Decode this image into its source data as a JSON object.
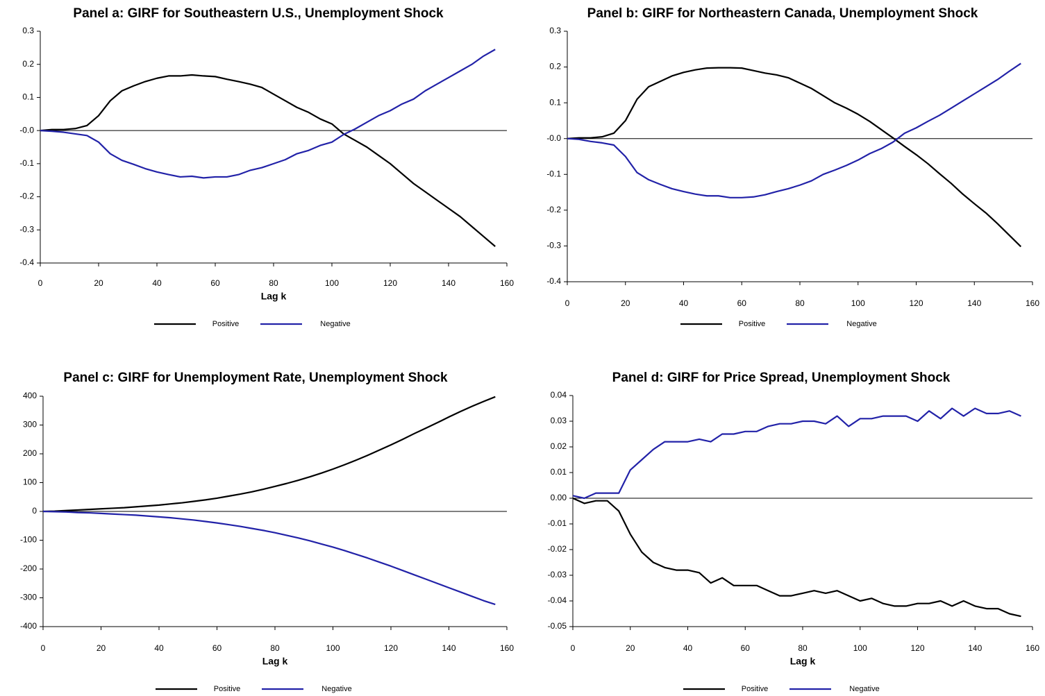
{
  "chart_data": [
    {
      "type": "line",
      "title": "Panel a: GIRF for Southeastern U.S., Unemployment Shock",
      "xlabel": "Lag k",
      "legend": "bottom",
      "x": [
        0,
        4,
        8,
        12,
        16,
        20,
        24,
        28,
        32,
        36,
        40,
        44,
        48,
        52,
        56,
        60,
        64,
        68,
        72,
        76,
        80,
        84,
        88,
        92,
        96,
        100,
        104,
        108,
        112,
        116,
        120,
        124,
        128,
        132,
        136,
        140,
        144,
        148,
        152,
        156
      ],
      "series": [
        {
          "name": "Positive",
          "color": "#000000",
          "values": [
            0,
            0.003,
            0.003,
            0.006,
            0.015,
            0.045,
            0.09,
            0.12,
            0.135,
            0.148,
            0.158,
            0.165,
            0.165,
            0.168,
            0.165,
            0.163,
            0.155,
            0.148,
            0.14,
            0.13,
            0.11,
            0.09,
            0.07,
            0.055,
            0.035,
            0.02,
            -0.01,
            -0.03,
            -0.05,
            -0.075,
            -0.1,
            -0.13,
            -0.16,
            -0.185,
            -0.21,
            -0.235,
            -0.26,
            -0.29,
            -0.32,
            -0.35
          ]
        },
        {
          "name": "Negative",
          "color": "#2222a8",
          "values": [
            0,
            -0.002,
            -0.005,
            -0.01,
            -0.015,
            -0.035,
            -0.07,
            -0.09,
            -0.102,
            -0.115,
            -0.125,
            -0.133,
            -0.14,
            -0.138,
            -0.143,
            -0.14,
            -0.14,
            -0.133,
            -0.12,
            -0.112,
            -0.1,
            -0.088,
            -0.07,
            -0.06,
            -0.045,
            -0.035,
            -0.012,
            0.005,
            0.025,
            0.045,
            0.06,
            0.08,
            0.095,
            0.12,
            0.14,
            0.16,
            0.18,
            0.2,
            0.225,
            0.245
          ]
        }
      ],
      "xlim": [
        0,
        160
      ],
      "xticks": [
        0,
        20,
        40,
        60,
        80,
        100,
        120,
        140,
        160
      ],
      "ylim": [
        -0.4,
        0.3
      ],
      "yticks": [
        -0.4,
        -0.3,
        -0.2,
        -0.1,
        {
          "value": 0,
          "label": "-0.0"
        },
        0.1,
        0.2,
        0.3
      ]
    },
    {
      "type": "line",
      "title": "Panel b: GIRF for Northeastern Canada, Unemployment Shock",
      "legend": "bottom",
      "x": [
        0,
        4,
        8,
        12,
        16,
        20,
        24,
        28,
        32,
        36,
        40,
        44,
        48,
        52,
        56,
        60,
        64,
        68,
        72,
        76,
        80,
        84,
        88,
        92,
        96,
        100,
        104,
        108,
        112,
        116,
        120,
        124,
        128,
        132,
        136,
        140,
        144,
        148,
        152,
        156
      ],
      "series": [
        {
          "name": "Positive",
          "color": "#000000",
          "values": [
            0,
            0.002,
            0.002,
            0.005,
            0.015,
            0.05,
            0.11,
            0.145,
            0.16,
            0.175,
            0.185,
            0.192,
            0.197,
            0.198,
            0.198,
            0.197,
            0.19,
            0.183,
            0.178,
            0.17,
            0.155,
            0.14,
            0.12,
            0.1,
            0.085,
            0.068,
            0.048,
            0.025,
            0.002,
            -0.022,
            -0.045,
            -0.07,
            -0.098,
            -0.125,
            -0.155,
            -0.182,
            -0.208,
            -0.238,
            -0.27,
            -0.302
          ]
        },
        {
          "name": "Negative",
          "color": "#2222a8",
          "values": [
            0,
            -0.002,
            -0.008,
            -0.012,
            -0.018,
            -0.05,
            -0.095,
            -0.115,
            -0.128,
            -0.14,
            -0.148,
            -0.155,
            -0.16,
            -0.16,
            -0.165,
            -0.165,
            -0.163,
            -0.157,
            -0.148,
            -0.14,
            -0.13,
            -0.118,
            -0.1,
            -0.088,
            -0.075,
            -0.06,
            -0.042,
            -0.028,
            -0.01,
            0.015,
            0.03,
            0.048,
            0.065,
            0.085,
            0.105,
            0.125,
            0.145,
            0.165,
            0.188,
            0.21
          ]
        }
      ],
      "xlim": [
        0,
        160
      ],
      "xticks": [
        0,
        20,
        40,
        60,
        80,
        100,
        120,
        140,
        160
      ],
      "ylim": [
        -0.4,
        0.3
      ],
      "yticks": [
        -0.4,
        -0.3,
        -0.2,
        -0.1,
        {
          "value": 0,
          "label": "-0.0"
        },
        0.1,
        0.2,
        0.3
      ]
    },
    {
      "type": "line",
      "title": "Panel c: GIRF for Unemployment Rate, Unemployment Shock",
      "xlabel": "Lag k",
      "legend": "bottom",
      "x": [
        0,
        4,
        8,
        12,
        16,
        20,
        24,
        28,
        32,
        36,
        40,
        44,
        48,
        52,
        56,
        60,
        64,
        68,
        72,
        76,
        80,
        84,
        88,
        92,
        96,
        100,
        104,
        108,
        112,
        116,
        120,
        124,
        128,
        132,
        136,
        140,
        144,
        148,
        152,
        156
      ],
      "series": [
        {
          "name": "Positive",
          "color": "#000000",
          "values": [
            0,
            1,
            3,
            5,
            7,
            9,
            11,
            13,
            16,
            19,
            22,
            26,
            30,
            35,
            40,
            46,
            53,
            60,
            68,
            77,
            87,
            97,
            108,
            120,
            133,
            147,
            162,
            178,
            195,
            213,
            231,
            250,
            270,
            289,
            308,
            328,
            347,
            365,
            382,
            398
          ]
        },
        {
          "name": "Negative",
          "color": "#2222a8",
          "values": [
            0,
            -1,
            -2,
            -4,
            -5,
            -7,
            -9,
            -11,
            -13,
            -16,
            -19,
            -22,
            -26,
            -30,
            -35,
            -40,
            -46,
            -52,
            -59,
            -66,
            -74,
            -83,
            -92,
            -102,
            -113,
            -124,
            -136,
            -149,
            -162,
            -176,
            -190,
            -205,
            -220,
            -235,
            -250,
            -265,
            -280,
            -295,
            -310,
            -323
          ]
        }
      ],
      "xlim": [
        0,
        160
      ],
      "xticks": [
        0,
        20,
        40,
        60,
        80,
        100,
        120,
        140,
        160
      ],
      "ylim": [
        -400,
        400
      ],
      "yticks": [
        -400,
        -300,
        -200,
        -100,
        0,
        100,
        200,
        300,
        400
      ]
    },
    {
      "type": "line",
      "title": "Panel d: GIRF for Price Spread, Unemployment Shock",
      "xlabel": "Lag k",
      "legend": "bottom",
      "x": [
        0,
        4,
        8,
        12,
        16,
        20,
        24,
        28,
        32,
        36,
        40,
        44,
        48,
        52,
        56,
        60,
        64,
        68,
        72,
        76,
        80,
        84,
        88,
        92,
        96,
        100,
        104,
        108,
        112,
        116,
        120,
        124,
        128,
        132,
        136,
        140,
        144,
        148,
        152,
        156
      ],
      "series": [
        {
          "name": "Positive",
          "color": "#000000",
          "values": [
            0,
            -0.002,
            -0.001,
            -0.001,
            -0.005,
            -0.014,
            -0.021,
            -0.025,
            -0.027,
            -0.028,
            -0.028,
            -0.029,
            -0.033,
            -0.031,
            -0.034,
            -0.034,
            -0.034,
            -0.036,
            -0.038,
            -0.038,
            -0.037,
            -0.036,
            -0.037,
            -0.036,
            -0.038,
            -0.04,
            -0.039,
            -0.041,
            -0.042,
            -0.042,
            -0.041,
            -0.041,
            -0.04,
            -0.042,
            -0.04,
            -0.042,
            -0.043,
            -0.043,
            -0.045,
            -0.046
          ]
        },
        {
          "name": "Negative",
          "color": "#2222a8",
          "values": [
            0.001,
            0,
            0.002,
            0.002,
            0.002,
            0.011,
            0.015,
            0.019,
            0.022,
            0.022,
            0.022,
            0.023,
            0.022,
            0.025,
            0.025,
            0.026,
            0.026,
            0.028,
            0.029,
            0.029,
            0.03,
            0.03,
            0.029,
            0.032,
            0.028,
            0.031,
            0.031,
            0.032,
            0.032,
            0.032,
            0.03,
            0.034,
            0.031,
            0.035,
            0.032,
            0.035,
            0.033,
            0.033,
            0.034,
            0.032
          ]
        }
      ],
      "xlim": [
        0,
        160
      ],
      "xticks": [
        0,
        20,
        40,
        60,
        80,
        100,
        120,
        140,
        160
      ],
      "ylim": [
        -0.05,
        0.04
      ],
      "yticks": [
        -0.05,
        -0.04,
        -0.03,
        -0.02,
        -0.01,
        {
          "value": 0,
          "label": "0.00"
        },
        0.01,
        0.02,
        0.03,
        0.04
      ]
    }
  ]
}
